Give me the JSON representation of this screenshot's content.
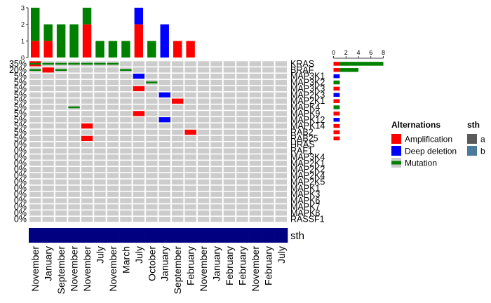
{
  "colors": {
    "amplification": "#ff0000",
    "deep_deletion": "#0000ff",
    "mutation": "#008000",
    "background_cell": "#cccccc",
    "sth_a": "#5a5a5a",
    "sth_b": "#4a7a9c",
    "annotation_bar": "#000080"
  },
  "chart_data": {
    "type": "heatmap",
    "title": "",
    "genes": [
      "KRAS",
      "BRAF",
      "MAP3K1",
      "MAP3K2",
      "MAP3K3",
      "MAP2K3",
      "MAP2K1",
      "MAPK4",
      "MAPK9",
      "MAPK12",
      "MAPK14",
      "RAB2",
      "RAB25",
      "HRAS",
      "RAF1",
      "MAP3K4",
      "MAP2K1",
      "MAP2K2",
      "MAP2K4",
      "MAP2K5",
      "MAPK1",
      "MAPK3",
      "MAPK6",
      "MAPK7",
      "MAPK8",
      "RASSF1"
    ],
    "percentages": [
      "35%",
      "20%",
      "5%",
      "5%",
      "5%",
      "5%",
      "5%",
      "5%",
      "5%",
      "5%",
      "5%",
      "5%",
      "5%",
      "0%",
      "0%",
      "0%",
      "0%",
      "0%",
      "0%",
      "0%",
      "0%",
      "0%",
      "0%",
      "0%",
      "0%",
      "0%"
    ],
    "samples": [
      "November",
      "January",
      "September",
      "November",
      "November",
      "July",
      "November",
      "March",
      "July",
      "October",
      "January",
      "September",
      "February",
      "November",
      "January",
      "February",
      "February",
      "November",
      "February",
      "July"
    ],
    "alterations": [
      {
        "gene": 0,
        "sample": 0,
        "type": "amplification"
      },
      {
        "gene": 0,
        "sample": 0,
        "type": "mutation"
      },
      {
        "gene": 0,
        "sample": 1,
        "type": "mutation"
      },
      {
        "gene": 0,
        "sample": 2,
        "type": "mutation"
      },
      {
        "gene": 0,
        "sample": 3,
        "type": "mutation"
      },
      {
        "gene": 0,
        "sample": 4,
        "type": "mutation"
      },
      {
        "gene": 0,
        "sample": 5,
        "type": "mutation"
      },
      {
        "gene": 0,
        "sample": 6,
        "type": "mutation"
      },
      {
        "gene": 1,
        "sample": 0,
        "type": "mutation"
      },
      {
        "gene": 1,
        "sample": 1,
        "type": "amplification"
      },
      {
        "gene": 1,
        "sample": 2,
        "type": "mutation"
      },
      {
        "gene": 1,
        "sample": 7,
        "type": "mutation"
      },
      {
        "gene": 2,
        "sample": 8,
        "type": "deep_deletion"
      },
      {
        "gene": 3,
        "sample": 9,
        "type": "mutation"
      },
      {
        "gene": 4,
        "sample": 8,
        "type": "amplification"
      },
      {
        "gene": 5,
        "sample": 10,
        "type": "deep_deletion"
      },
      {
        "gene": 6,
        "sample": 11,
        "type": "amplification"
      },
      {
        "gene": 7,
        "sample": 3,
        "type": "mutation"
      },
      {
        "gene": 8,
        "sample": 8,
        "type": "amplification"
      },
      {
        "gene": 9,
        "sample": 10,
        "type": "deep_deletion"
      },
      {
        "gene": 10,
        "sample": 4,
        "type": "amplification"
      },
      {
        "gene": 11,
        "sample": 12,
        "type": "amplification"
      },
      {
        "gene": 12,
        "sample": 4,
        "type": "amplification"
      }
    ],
    "top_barplot": {
      "ylim": [
        0,
        3
      ],
      "yticks": [
        0,
        1,
        2,
        3
      ],
      "stacks": [
        {
          "amplification": 1,
          "deep_deletion": 0,
          "mutation": 2
        },
        {
          "amplification": 1,
          "deep_deletion": 0,
          "mutation": 1
        },
        {
          "amplification": 0,
          "deep_deletion": 0,
          "mutation": 2
        },
        {
          "amplification": 0,
          "deep_deletion": 0,
          "mutation": 2
        },
        {
          "amplification": 2,
          "deep_deletion": 0,
          "mutation": 1
        },
        {
          "amplification": 0,
          "deep_deletion": 0,
          "mutation": 1
        },
        {
          "amplification": 0,
          "deep_deletion": 0,
          "mutation": 1
        },
        {
          "amplification": 0,
          "deep_deletion": 0,
          "mutation": 1
        },
        {
          "amplification": 2,
          "deep_deletion": 1,
          "mutation": 0
        },
        {
          "amplification": 0,
          "deep_deletion": 0,
          "mutation": 1
        },
        {
          "amplification": 0,
          "deep_deletion": 2,
          "mutation": 0
        },
        {
          "amplification": 1,
          "deep_deletion": 0,
          "mutation": 0
        },
        {
          "amplification": 1,
          "deep_deletion": 0,
          "mutation": 0
        },
        {
          "amplification": 0,
          "deep_deletion": 0,
          "mutation": 0
        },
        {
          "amplification": 0,
          "deep_deletion": 0,
          "mutation": 0
        },
        {
          "amplification": 0,
          "deep_deletion": 0,
          "mutation": 0
        },
        {
          "amplification": 0,
          "deep_deletion": 0,
          "mutation": 0
        },
        {
          "amplification": 0,
          "deep_deletion": 0,
          "mutation": 0
        },
        {
          "amplification": 0,
          "deep_deletion": 0,
          "mutation": 0
        },
        {
          "amplification": 0,
          "deep_deletion": 0,
          "mutation": 0
        }
      ]
    },
    "right_barplot": {
      "xlim": [
        0,
        8
      ],
      "xticks": [
        0,
        2,
        4,
        6,
        8
      ],
      "stacks": [
        {
          "amplification": 1,
          "deep_deletion": 0,
          "mutation": 7
        },
        {
          "amplification": 1,
          "deep_deletion": 0,
          "mutation": 3
        },
        {
          "amplification": 0,
          "deep_deletion": 1,
          "mutation": 0
        },
        {
          "amplification": 0,
          "deep_deletion": 0,
          "mutation": 1
        },
        {
          "amplification": 1,
          "deep_deletion": 0,
          "mutation": 0
        },
        {
          "amplification": 0,
          "deep_deletion": 1,
          "mutation": 0
        },
        {
          "amplification": 1,
          "deep_deletion": 0,
          "mutation": 0
        },
        {
          "amplification": 0,
          "deep_deletion": 0,
          "mutation": 1
        },
        {
          "amplification": 1,
          "deep_deletion": 0,
          "mutation": 0
        },
        {
          "amplification": 0,
          "deep_deletion": 1,
          "mutation": 0
        },
        {
          "amplification": 1,
          "deep_deletion": 0,
          "mutation": 0
        },
        {
          "amplification": 1,
          "deep_deletion": 0,
          "mutation": 0
        },
        {
          "amplification": 1,
          "deep_deletion": 0,
          "mutation": 0
        }
      ]
    },
    "annotation": {
      "label": "sth",
      "values": [
        "b",
        "b",
        "b",
        "b",
        "b",
        "b",
        "b",
        "b",
        "b",
        "b",
        "b",
        "b",
        "b",
        "b",
        "b",
        "b",
        "b",
        "b",
        "b",
        "b"
      ]
    },
    "legend": {
      "alterations_title": "Alternations",
      "alterations": [
        {
          "key": "amplification",
          "label": "Amplification"
        },
        {
          "key": "deep_deletion",
          "label": "Deep deletion"
        },
        {
          "key": "mutation",
          "label": "Mutation"
        }
      ],
      "annotation_title": "sth",
      "annotation_items": [
        {
          "key": "sth_a",
          "label": "a"
        },
        {
          "key": "sth_b",
          "label": "b"
        }
      ]
    }
  }
}
